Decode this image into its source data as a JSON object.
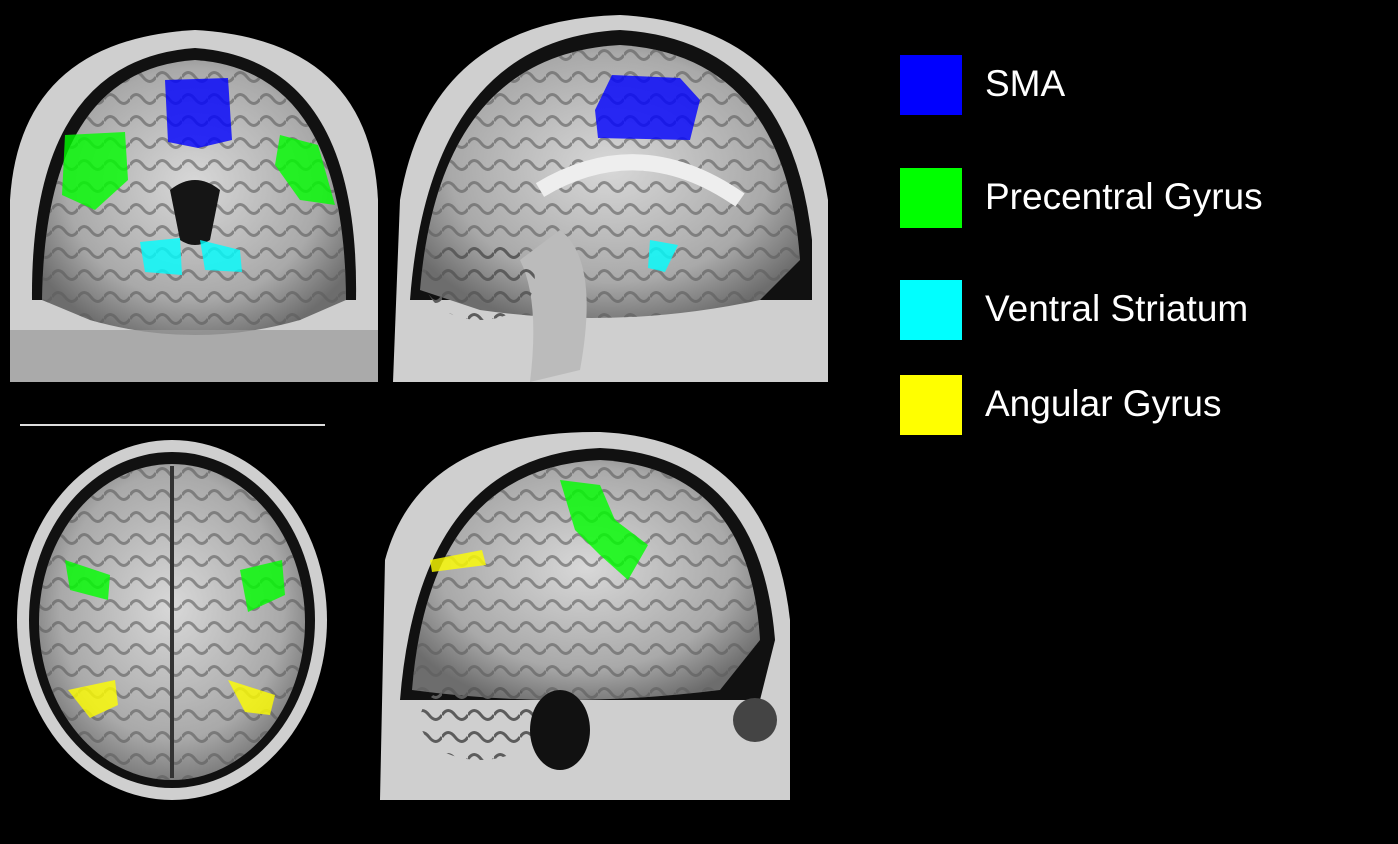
{
  "legend": {
    "items": [
      {
        "label": "SMA",
        "color": "#0000ff"
      },
      {
        "label": "Precentral Gyrus",
        "color": "#00ff00"
      },
      {
        "label": "Ventral Striatum",
        "color": "#00ffff"
      },
      {
        "label": "Angular Gyrus",
        "color": "#ffff00"
      }
    ]
  }
}
